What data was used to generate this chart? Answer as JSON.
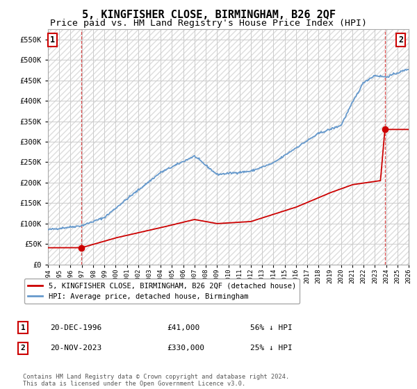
{
  "title": "5, KINGFISHER CLOSE, BIRMINGHAM, B26 2QF",
  "subtitle": "Price paid vs. HM Land Registry's House Price Index (HPI)",
  "title_fontsize": 11,
  "subtitle_fontsize": 9.5,
  "ylim": [
    0,
    575000
  ],
  "yticks": [
    0,
    50000,
    100000,
    150000,
    200000,
    250000,
    300000,
    350000,
    400000,
    450000,
    500000,
    550000
  ],
  "ytick_labels": [
    "£0",
    "£50K",
    "£100K",
    "£150K",
    "£200K",
    "£250K",
    "£300K",
    "£350K",
    "£400K",
    "£450K",
    "£500K",
    "£550K"
  ],
  "hpi_color": "#6699cc",
  "price_color": "#cc0000",
  "grid_color": "#cccccc",
  "bg_color": "#ffffff",
  "sale1_year": 1996.97,
  "sale1_price": 41000,
  "sale2_year": 2023.89,
  "sale2_price": 330000,
  "legend_label1": "5, KINGFISHER CLOSE, BIRMINGHAM, B26 2QF (detached house)",
  "legend_label2": "HPI: Average price, detached house, Birmingham",
  "footer": "Contains HM Land Registry data © Crown copyright and database right 2024.\nThis data is licensed under the Open Government Licence v3.0.",
  "table_rows": [
    [
      "1",
      "20-DEC-1996",
      "£41,000",
      "56% ↓ HPI"
    ],
    [
      "2",
      "20-NOV-2023",
      "£330,000",
      "25% ↓ HPI"
    ]
  ],
  "xmin": 1994,
  "xmax": 2026,
  "hpi_nodes_x": [
    1994,
    1997,
    1999,
    2001,
    2004,
    2007,
    2009,
    2012,
    2014,
    2016,
    2018,
    2020,
    2021,
    2022,
    2023,
    2024,
    2026
  ],
  "hpi_nodes_y": [
    85000,
    95000,
    115000,
    160000,
    225000,
    265000,
    220000,
    228000,
    248000,
    285000,
    320000,
    340000,
    395000,
    445000,
    462000,
    458000,
    478000
  ],
  "price_nodes_x": [
    1994,
    1996.97,
    2000,
    2004,
    2007,
    2009,
    2012,
    2016,
    2019,
    2021,
    2023.5,
    2023.89,
    2026
  ],
  "price_nodes_y": [
    41000,
    41000,
    65000,
    90000,
    110000,
    100000,
    105000,
    140000,
    175000,
    195000,
    205000,
    330000,
    330000
  ]
}
